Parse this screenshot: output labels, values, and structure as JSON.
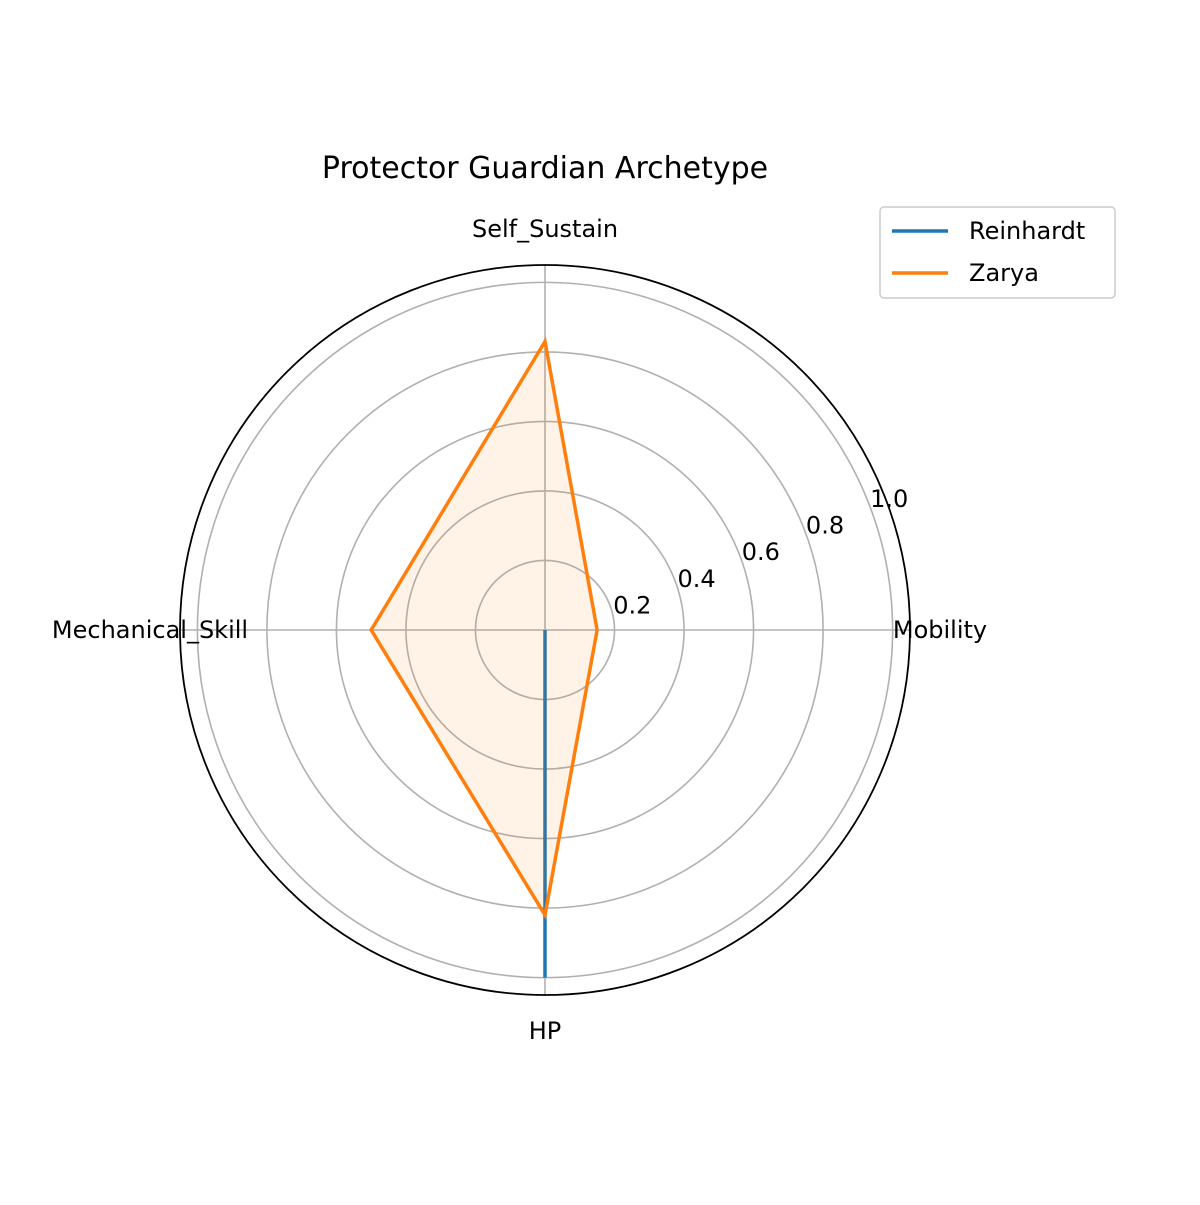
{
  "chart_data": {
    "type": "radar",
    "title": "Protector Guardian Archetype",
    "axes": [
      "Mobility",
      "Self_Sustain",
      "Mechanical_Skill",
      "HP"
    ],
    "rlim": [
      0,
      1.05
    ],
    "rticks": [
      0.2,
      0.4,
      0.6,
      0.8,
      1.0
    ],
    "rtick_labels": [
      "0.2",
      "0.4",
      "0.6",
      "0.8",
      "1.0"
    ],
    "grid": true,
    "legend_position": "top-right",
    "series": [
      {
        "name": "Reinhardt",
        "color": "#1f77b4",
        "values": [
          0.0,
          0.0,
          0.0,
          1.0
        ],
        "fill": false
      },
      {
        "name": "Zarya",
        "color": "#ff7f0e",
        "values": [
          0.15,
          0.83,
          0.5,
          0.82
        ],
        "fill": true
      }
    ]
  }
}
